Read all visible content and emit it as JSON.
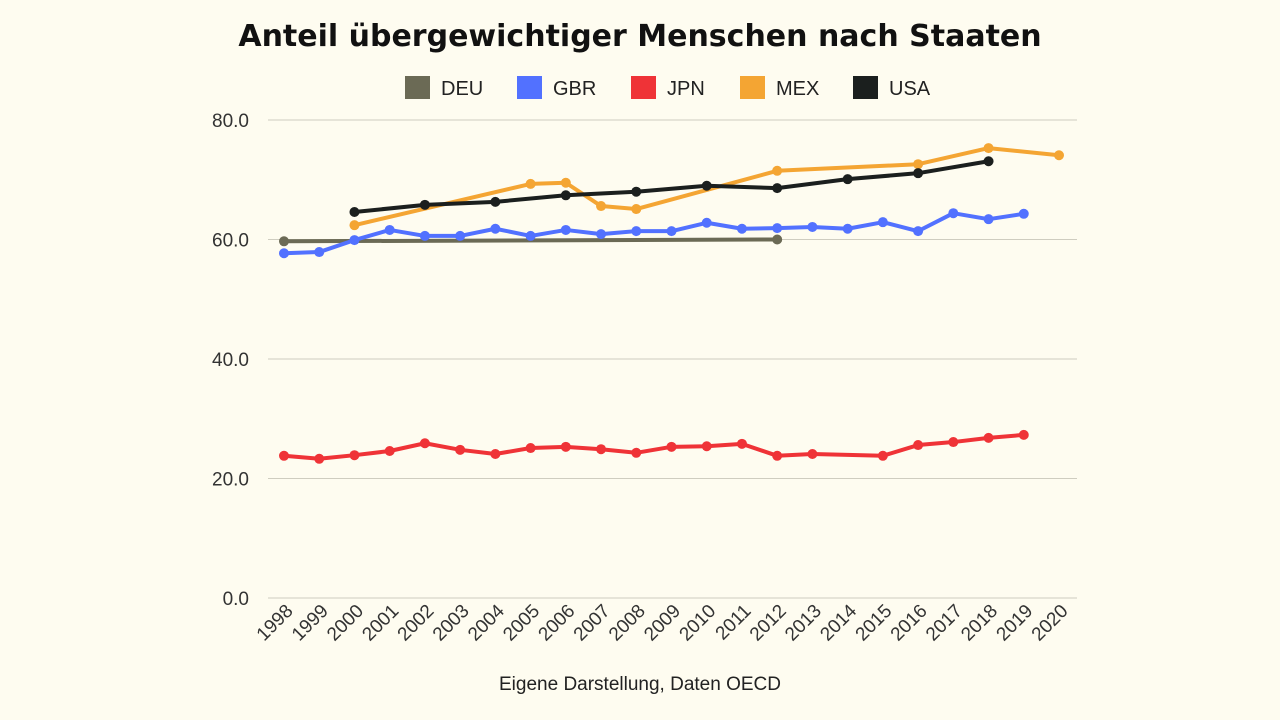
{
  "chart_data": {
    "type": "line",
    "title": "Anteil übergewichtiger Menschen nach Staaten",
    "caption": "Eigene Darstellung, Daten OECD",
    "xlabel": "",
    "ylabel": "",
    "ylim": [
      0,
      80
    ],
    "yticks": [
      "0.0",
      "20.0",
      "40.0",
      "60.0",
      "80.0"
    ],
    "x": [
      1998,
      1999,
      2000,
      2001,
      2002,
      2003,
      2004,
      2005,
      2006,
      2007,
      2008,
      2009,
      2010,
      2011,
      2012,
      2013,
      2014,
      2015,
      2016,
      2017,
      2018,
      2019,
      2020
    ],
    "grid": true,
    "legend_position": "top",
    "series": [
      {
        "name": "DEU",
        "color": "#6b6a55",
        "points": [
          [
            1998,
            59.7
          ],
          [
            2012,
            60.0
          ]
        ]
      },
      {
        "name": "GBR",
        "color": "#5271ff",
        "points": [
          [
            1998,
            57.7
          ],
          [
            1999,
            57.9
          ],
          [
            2000,
            59.9
          ],
          [
            2001,
            61.6
          ],
          [
            2002,
            60.6
          ],
          [
            2003,
            60.6
          ],
          [
            2004,
            61.8
          ],
          [
            2005,
            60.6
          ],
          [
            2006,
            61.6
          ],
          [
            2007,
            60.9
          ],
          [
            2008,
            61.4
          ],
          [
            2009,
            61.4
          ],
          [
            2010,
            62.8
          ],
          [
            2011,
            61.8
          ],
          [
            2012,
            61.9
          ],
          [
            2013,
            62.1
          ],
          [
            2014,
            61.8
          ],
          [
            2015,
            62.9
          ],
          [
            2016,
            61.4
          ],
          [
            2017,
            64.4
          ],
          [
            2018,
            63.4
          ],
          [
            2019,
            64.3
          ]
        ]
      },
      {
        "name": "JPN",
        "color": "#ef3337",
        "points": [
          [
            1998,
            23.8
          ],
          [
            1999,
            23.3
          ],
          [
            2000,
            23.9
          ],
          [
            2001,
            24.6
          ],
          [
            2002,
            25.9
          ],
          [
            2003,
            24.8
          ],
          [
            2004,
            24.1
          ],
          [
            2005,
            25.1
          ],
          [
            2006,
            25.3
          ],
          [
            2007,
            24.9
          ],
          [
            2008,
            24.3
          ],
          [
            2009,
            25.3
          ],
          [
            2010,
            25.4
          ],
          [
            2011,
            25.8
          ],
          [
            2012,
            23.8
          ],
          [
            2013,
            24.1
          ],
          [
            2015,
            23.8
          ],
          [
            2016,
            25.6
          ],
          [
            2017,
            26.1
          ],
          [
            2018,
            26.8
          ],
          [
            2019,
            27.3
          ]
        ]
      },
      {
        "name": "MEX",
        "color": "#f4a533",
        "points": [
          [
            2000,
            62.4
          ],
          [
            2005,
            69.3
          ],
          [
            2006,
            69.5
          ],
          [
            2007,
            65.6
          ],
          [
            2008,
            65.1
          ],
          [
            2012,
            71.5
          ],
          [
            2016,
            72.6
          ],
          [
            2018,
            75.3
          ],
          [
            2020,
            74.1
          ]
        ]
      },
      {
        "name": "USA",
        "color": "#1b1f1e",
        "points": [
          [
            2000,
            64.6
          ],
          [
            2002,
            65.8
          ],
          [
            2004,
            66.3
          ],
          [
            2006,
            67.4
          ],
          [
            2008,
            68.0
          ],
          [
            2010,
            69.0
          ],
          [
            2012,
            68.6
          ],
          [
            2014,
            70.1
          ],
          [
            2016,
            71.1
          ],
          [
            2018,
            73.1
          ]
        ]
      }
    ]
  }
}
